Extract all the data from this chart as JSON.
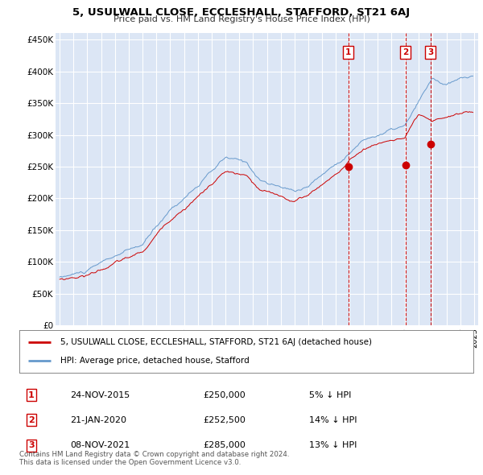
{
  "title": "5, USULWALL CLOSE, ECCLESHALL, STAFFORD, ST21 6AJ",
  "subtitle": "Price paid vs. HM Land Registry's House Price Index (HPI)",
  "ylim": [
    0,
    460000
  ],
  "yticks": [
    0,
    50000,
    100000,
    150000,
    200000,
    250000,
    300000,
    350000,
    400000,
    450000
  ],
  "ytick_labels": [
    "£0",
    "£50K",
    "£100K",
    "£150K",
    "£200K",
    "£250K",
    "£300K",
    "£350K",
    "£400K",
    "£450K"
  ],
  "background_color": "#ffffff",
  "plot_bg_color": "#dce6f5",
  "grid_color": "#ffffff",
  "sale_color": "#cc0000",
  "hpi_color": "#6699cc",
  "sale_label": "5, USULWALL CLOSE, ECCLESHALL, STAFFORD, ST21 6AJ (detached house)",
  "hpi_label": "HPI: Average price, detached house, Stafford",
  "transactions": [
    {
      "num": 1,
      "date": "24-NOV-2015",
      "price": 250000,
      "pct": "5%",
      "x": 2015.9
    },
    {
      "num": 2,
      "date": "21-JAN-2020",
      "price": 252500,
      "pct": "14%",
      "x": 2020.05
    },
    {
      "num": 3,
      "date": "08-NOV-2021",
      "price": 285000,
      "pct": "13%",
      "x": 2021.85
    }
  ],
  "copyright_text": "Contains HM Land Registry data © Crown copyright and database right 2024.\nThis data is licensed under the Open Government Licence v3.0.",
  "xlim_left": 1994.7,
  "xlim_right": 2025.3
}
